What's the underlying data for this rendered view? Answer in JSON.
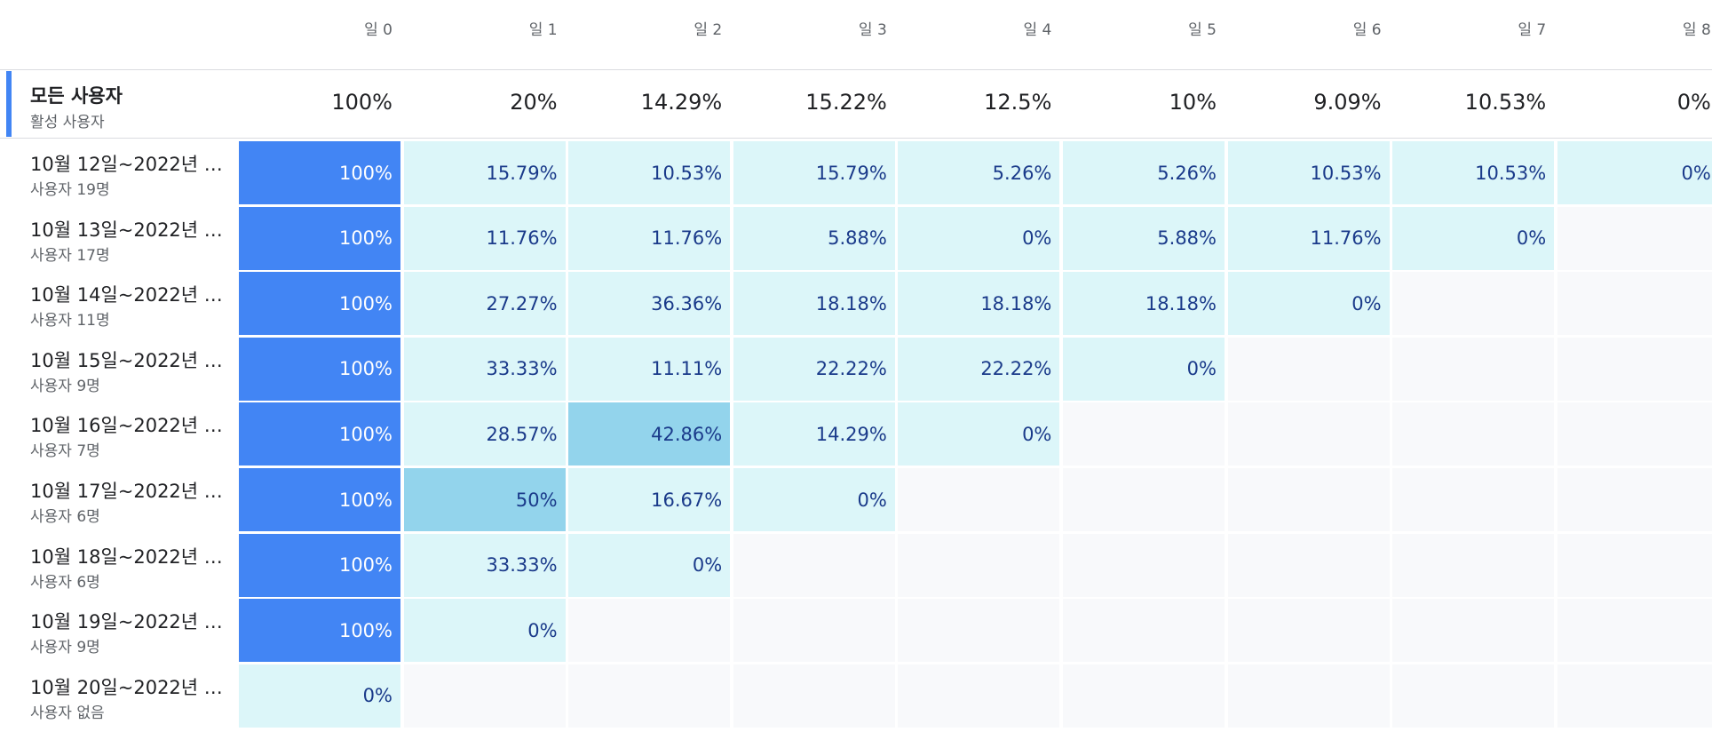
{
  "days": [
    "일 0",
    "일 1",
    "일 2",
    "일 3",
    "일 4",
    "일 5",
    "일 6",
    "일 7",
    "일 8"
  ],
  "summary": {
    "title": "모든 사용자",
    "subtitle": "활성 사용자",
    "values": [
      "100%",
      "20%",
      "14.29%",
      "15.22%",
      "12.5%",
      "10%",
      "9.09%",
      "10.53%",
      "0%"
    ]
  },
  "cohorts": [
    {
      "label": "10월 12일~2022년 1...",
      "users": "사용자 19명",
      "values": [
        "100%",
        "15.79%",
        "10.53%",
        "15.79%",
        "5.26%",
        "5.26%",
        "10.53%",
        "10.53%",
        "0%"
      ]
    },
    {
      "label": "10월 13일~2022년 1...",
      "users": "사용자 17명",
      "values": [
        "100%",
        "11.76%",
        "11.76%",
        "5.88%",
        "0%",
        "5.88%",
        "11.76%",
        "0%"
      ]
    },
    {
      "label": "10월 14일~2022년 1...",
      "users": "사용자 11명",
      "values": [
        "100%",
        "27.27%",
        "36.36%",
        "18.18%",
        "18.18%",
        "18.18%",
        "0%"
      ]
    },
    {
      "label": "10월 15일~2022년 1...",
      "users": "사용자 9명",
      "values": [
        "100%",
        "33.33%",
        "11.11%",
        "22.22%",
        "22.22%",
        "0%"
      ]
    },
    {
      "label": "10월 16일~2022년 1...",
      "users": "사용자 7명",
      "values": [
        "100%",
        "28.57%",
        "42.86%",
        "14.29%",
        "0%"
      ]
    },
    {
      "label": "10월 17일~2022년 1...",
      "users": "사용자 6명",
      "values": [
        "100%",
        "50%",
        "16.67%",
        "0%"
      ]
    },
    {
      "label": "10월 18일~2022년 1...",
      "users": "사용자 6명",
      "values": [
        "100%",
        "33.33%",
        "0%"
      ]
    },
    {
      "label": "10월 19일~2022년 1...",
      "users": "사용자 9명",
      "values": [
        "100%",
        "0%"
      ]
    },
    {
      "label": "10월 20일~2022년 1...",
      "users": "사용자 없음",
      "values": [
        "0%"
      ]
    }
  ],
  "colors": {
    "full": "#4285f4",
    "light": "#dcf6f9",
    "mid": "#93d4ec",
    "empty": "#f8f9fb",
    "accent": "#4285f4"
  }
}
